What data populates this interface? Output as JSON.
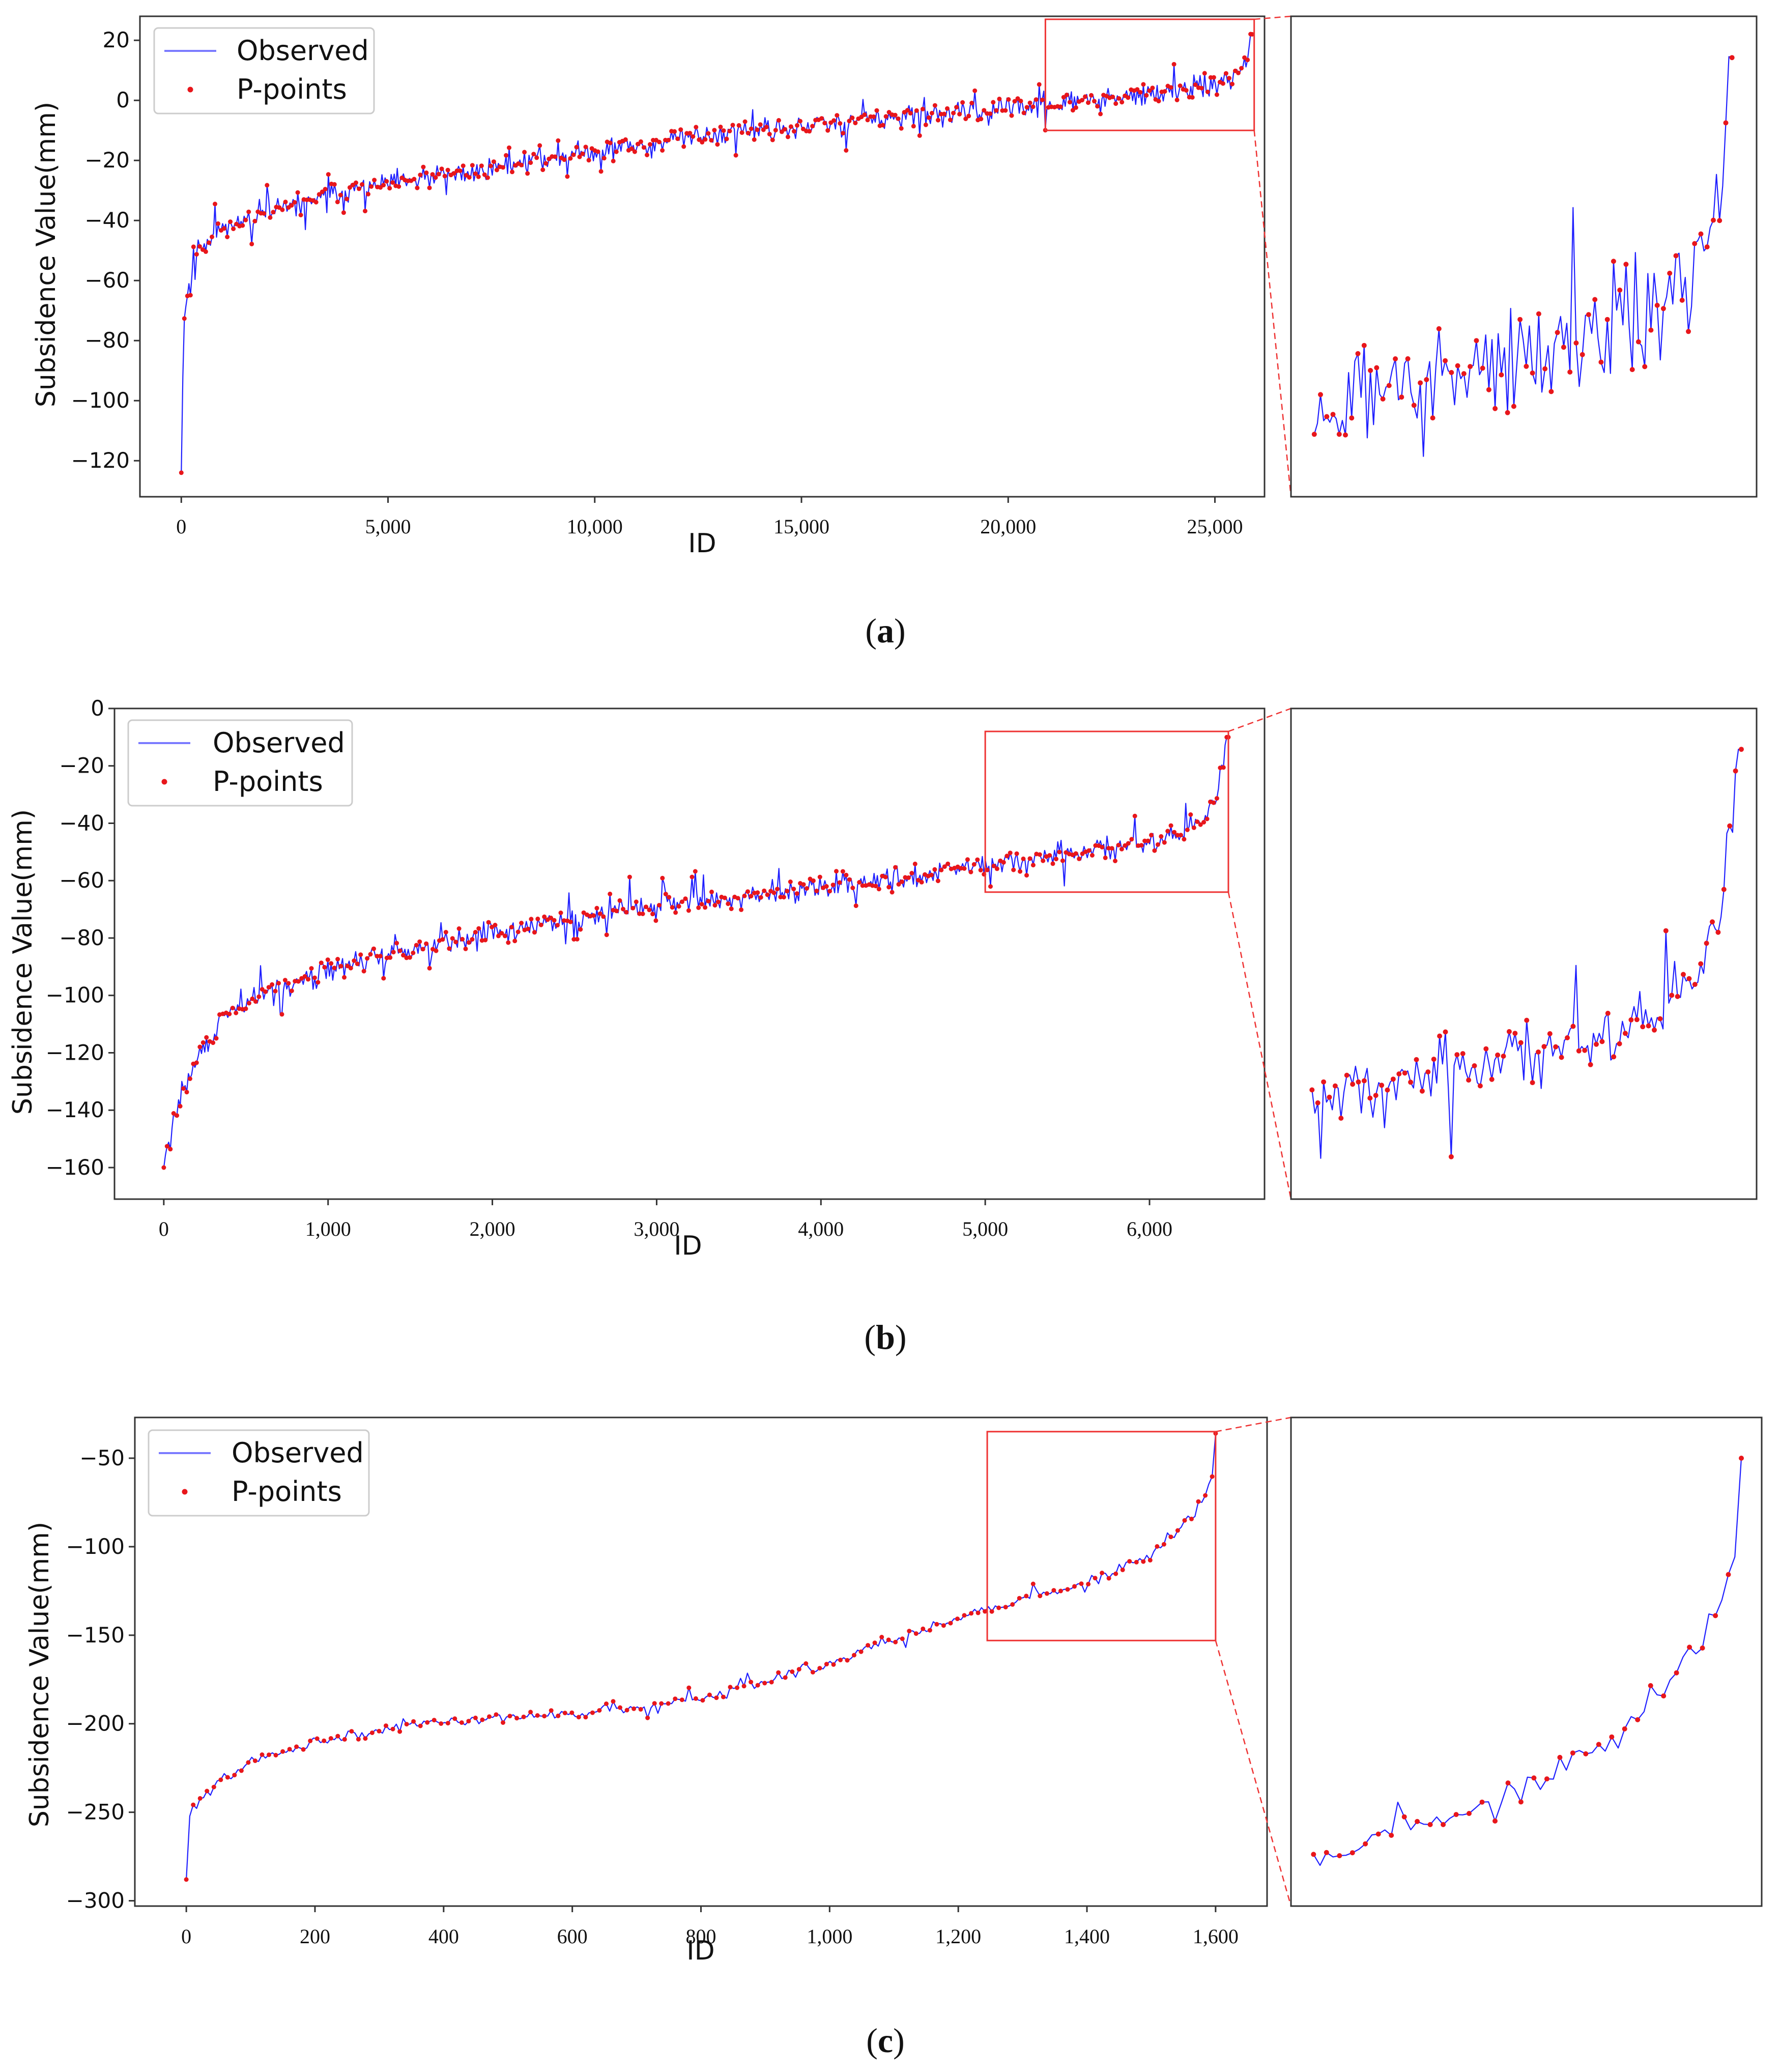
{
  "figure": {
    "background": "#ffffff"
  },
  "colors": {
    "line": "#1f1fff",
    "points": "#e8161b",
    "zoom": "#ee3333",
    "frame": "#333333"
  },
  "chart_data": [
    {
      "id": "a",
      "type": "line",
      "label_open": "(",
      "label_letter": "a",
      "label_close": ")",
      "xlabel": "ID",
      "ylabel": "Subsidence Value(mm)",
      "xlim": [
        -1000,
        26200
      ],
      "ylim": [
        -132,
        28
      ],
      "xticks": [
        0,
        5000,
        10000,
        15000,
        20000,
        25000
      ],
      "xtick_labels": [
        "0",
        "5,000",
        "10,000",
        "15,000",
        "20,000",
        "25,000"
      ],
      "yticks": [
        20,
        0,
        -20,
        -40,
        -60,
        -80,
        -100,
        -120
      ],
      "ytick_labels": [
        "20",
        "0",
        "−20",
        "−40",
        "−60",
        "−80",
        "−100",
        "−120"
      ],
      "legend": {
        "position": "upper-left",
        "line_label": "Observed",
        "points_label": "P-points"
      },
      "zoom_window": {
        "x_range": [
          20900,
          25950
        ],
        "y_range": [
          -10,
          27
        ]
      },
      "series": [
        {
          "name": "Observed",
          "x": [
            0,
            50,
            100,
            300,
            600,
            1000,
            2000,
            3000,
            4000,
            5000,
            6000,
            7000,
            8000,
            9000,
            10000,
            11000,
            12000,
            13000,
            14000,
            15000,
            16000,
            17000,
            18000,
            19000,
            20000,
            21000,
            22000,
            23000,
            24000,
            25000,
            25500,
            25800,
            25900
          ],
          "y": [
            -124,
            -78,
            -68,
            -52,
            -46,
            -42,
            -38,
            -34,
            -30,
            -28,
            -26,
            -24,
            -21,
            -19,
            -17,
            -15,
            -13,
            -11,
            -10,
            -9,
            -7,
            -6,
            -5,
            -4,
            -3,
            -1,
            0,
            1,
            3,
            5,
            8,
            14,
            22
          ],
          "noise": 5.5,
          "point_count": 700
        }
      ]
    },
    {
      "id": "b",
      "type": "line",
      "label_open": "(",
      "label_letter": "b",
      "label_close": ")",
      "xlabel": "ID",
      "ylabel": "Subsidence Value(mm)",
      "xlim": [
        -300,
        6700
      ],
      "ylim": [
        -171,
        0
      ],
      "xticks": [
        0,
        1000,
        2000,
        3000,
        4000,
        5000,
        6000
      ],
      "xtick_labels": [
        "0",
        "1,000",
        "2,000",
        "3,000",
        "4,000",
        "5,000",
        "6,000"
      ],
      "yticks": [
        0,
        -20,
        -40,
        -60,
        -80,
        -100,
        -120,
        -140,
        -160
      ],
      "ytick_labels": [
        "0",
        "−20",
        "−40",
        "−60",
        "−80",
        "−100",
        "−120",
        "−140",
        "−160"
      ],
      "legend": {
        "position": "upper-left",
        "line_label": "Observed",
        "points_label": "P-points"
      },
      "zoom_window": {
        "x_range": [
          5000,
          6480
        ],
        "y_range": [
          -64,
          -8
        ]
      },
      "series": [
        {
          "name": "Observed",
          "x": [
            0,
            50,
            100,
            200,
            300,
            400,
            600,
            800,
            1000,
            1500,
            2000,
            2500,
            3000,
            3500,
            4000,
            4500,
            5000,
            5500,
            5900,
            6200,
            6400,
            6480
          ],
          "y": [
            -160,
            -145,
            -136,
            -122,
            -114,
            -106,
            -100,
            -95,
            -91,
            -84,
            -78,
            -73,
            -69,
            -66,
            -62,
            -59,
            -55,
            -51,
            -48,
            -43,
            -35,
            -10
          ],
          "noise": 6,
          "point_count": 650
        }
      ]
    },
    {
      "id": "c",
      "type": "line",
      "label_open": "(",
      "label_letter": "c",
      "label_close": ")",
      "xlabel": "ID",
      "ylabel": "Subsidence Value(mm)",
      "xlim": [
        -80,
        1680
      ],
      "ylim": [
        -303,
        -27
      ],
      "xticks": [
        0,
        200,
        400,
        600,
        800,
        1000,
        1200,
        1400,
        1600
      ],
      "xtick_labels": [
        "0",
        "200",
        "400",
        "600",
        "800",
        "1,000",
        "1,200",
        "1,400",
        "1,600"
      ],
      "yticks": [
        -50,
        -100,
        -150,
        -200,
        -250,
        -300
      ],
      "ytick_labels": [
        "−50",
        "−100",
        "−150",
        "−200",
        "−250",
        "−300"
      ],
      "legend": {
        "position": "upper-left",
        "line_label": "Observed",
        "points_label": "P-points"
      },
      "zoom_window": {
        "x_range": [
          1245,
          1600
        ],
        "y_range": [
          -153,
          -35
        ]
      },
      "series": [
        {
          "name": "Observed",
          "x": [
            0,
            5,
            30,
            80,
            150,
            250,
            400,
            600,
            800,
            1000,
            1100,
            1200,
            1300,
            1400,
            1480,
            1540,
            1580,
            1598,
            1600
          ],
          "y": [
            -288,
            -250,
            -240,
            -225,
            -215,
            -206,
            -198,
            -194,
            -186,
            -166,
            -152,
            -140,
            -130,
            -120,
            -108,
            -92,
            -75,
            -60,
            -36
          ],
          "noise": 5,
          "point_count": 300
        }
      ]
    }
  ]
}
